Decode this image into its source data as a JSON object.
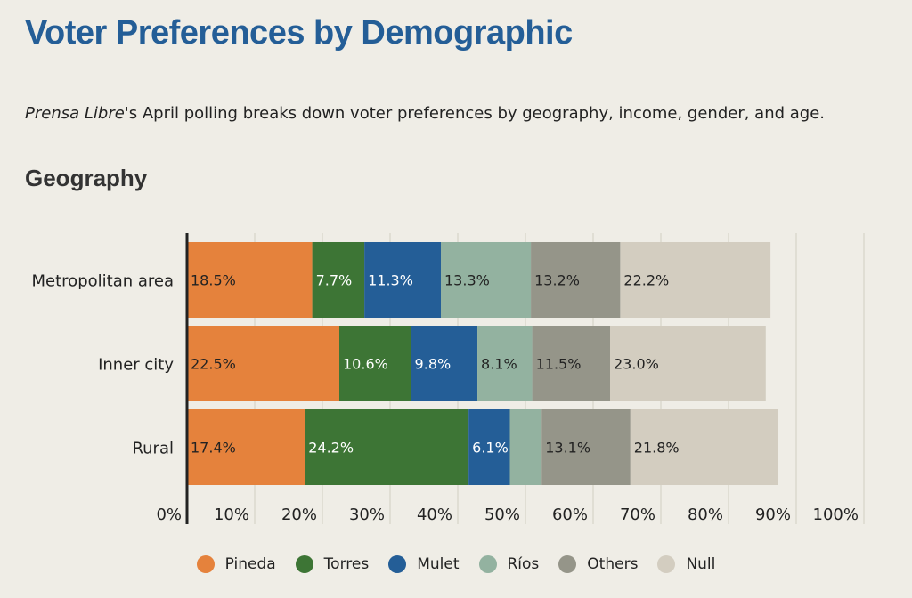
{
  "header": {
    "title": "Voter Preferences by Demographic",
    "subtitle_source": "Prensa Libre",
    "subtitle_rest": "'s April polling breaks down voter preferences by geography, income, gender, and age.",
    "section": "Geography"
  },
  "chart_data": {
    "type": "bar",
    "orientation": "horizontal",
    "stacked": true,
    "title": "Geography",
    "categories": [
      "Metropolitan area",
      "Inner city",
      "Rural"
    ],
    "series": [
      {
        "name": "Pineda",
        "color": "#e5823c",
        "label_color": "#222222",
        "values": [
          18.5,
          22.5,
          17.4
        ]
      },
      {
        "name": "Torres",
        "color": "#3d7535",
        "label_color": "#ffffff",
        "values": [
          7.7,
          10.6,
          24.2
        ]
      },
      {
        "name": "Mulet",
        "color": "#245e97",
        "label_color": "#ffffff",
        "values": [
          11.3,
          9.8,
          6.1
        ]
      },
      {
        "name": "Ríos",
        "color": "#93b2a0",
        "label_color": "#222222",
        "values": [
          13.3,
          8.1,
          4.7
        ]
      },
      {
        "name": "Others",
        "color": "#959589",
        "label_color": "#222222",
        "values": [
          13.2,
          11.5,
          13.1
        ]
      },
      {
        "name": "Null",
        "color": "#d3cdc0",
        "label_color": "#222222",
        "values": [
          22.2,
          23.0,
          21.8
        ]
      }
    ],
    "data_labels": [
      [
        "18.5%",
        "7.7%",
        "11.3%",
        "13.3%",
        "13.2%",
        "22.2%"
      ],
      [
        "22.5%",
        "10.6%",
        "9.8%",
        "8.1%",
        "11.5%",
        "23.0%"
      ],
      [
        "17.4%",
        "24.2%",
        "6.1%",
        "",
        "13.1%",
        "21.8%"
      ]
    ],
    "xlim": [
      0,
      100
    ],
    "xticks": [
      "0%",
      "10%",
      "20%",
      "30%",
      "40%",
      "50%",
      "60%",
      "70%",
      "80%",
      "90%",
      "100%"
    ],
    "grid": true,
    "legend": "bottom-center"
  }
}
